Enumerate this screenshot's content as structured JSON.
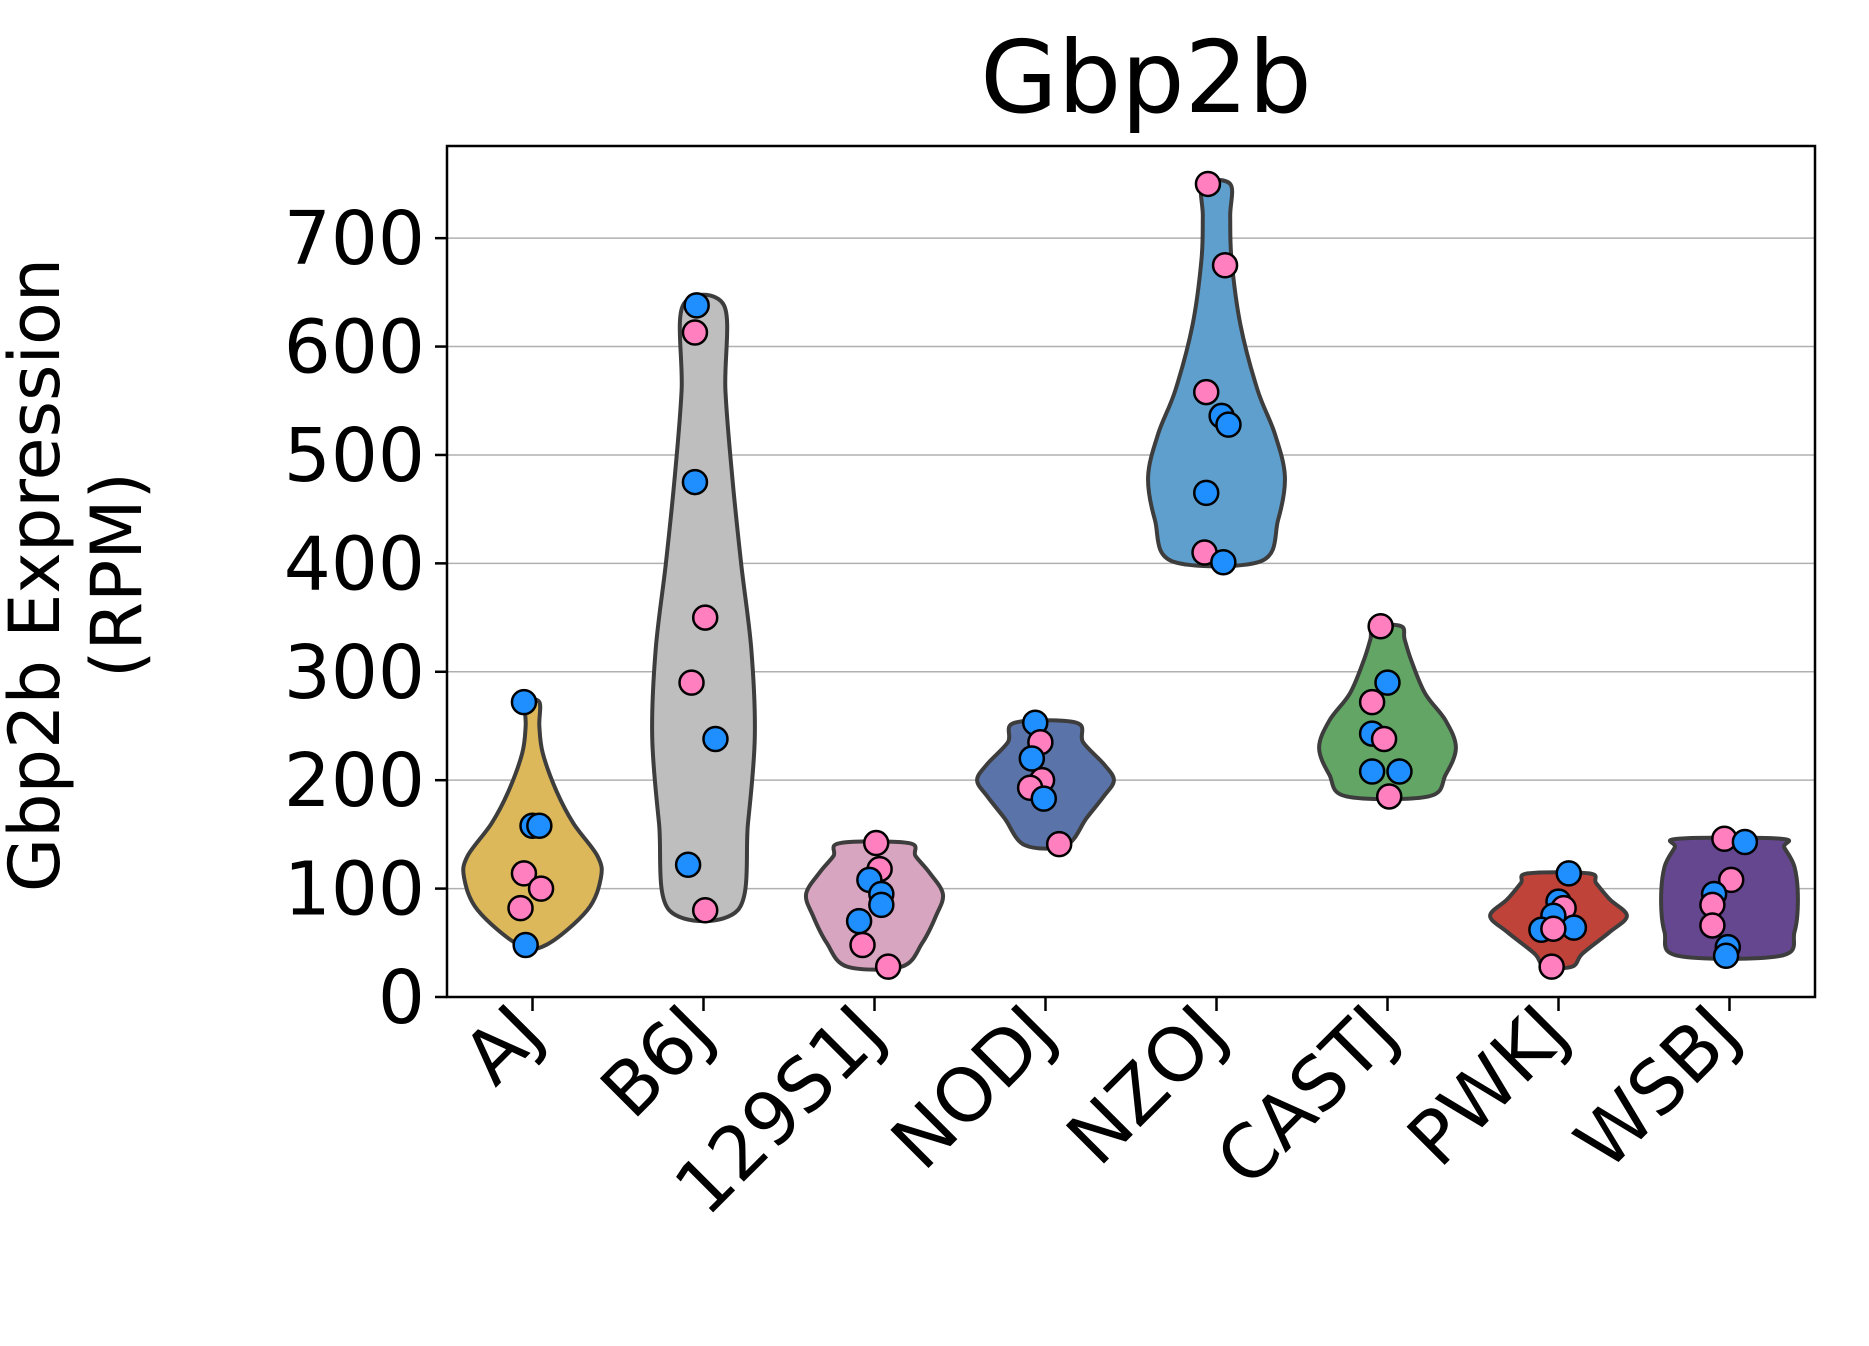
{
  "chart_data": {
    "type": "violin",
    "title": "Gbp2b",
    "xlabel": "",
    "ylabel": "Gbp2b Expression\n(RPM)",
    "ylim": [
      0,
      785
    ],
    "yticks": [
      0,
      100,
      200,
      300,
      400,
      500,
      600,
      700
    ],
    "grid": "horizontal",
    "categories": [
      "AJ",
      "B6J",
      "129S1J",
      "NODJ",
      "NZOJ",
      "CASTJ",
      "PWKJ",
      "WSBJ"
    ],
    "colors": {
      "AJ": "#ddb85a",
      "B6J": "#bebebe",
      "129S1J": "#d8a5c0",
      "NODJ": "#5a73a8",
      "NZOJ": "#5f9fcd",
      "CASTJ": "#62a565",
      "PWKJ": "#c0433a",
      "WSBJ": "#654790"
    },
    "point_colors": {
      "pink": "#ff7fbf",
      "blue": "#1f8fff"
    },
    "violins": [
      {
        "group": "AJ",
        "profile": [
          [
            48,
            0.2
          ],
          [
            80,
            0.8
          ],
          [
            110,
            1.0
          ],
          [
            130,
            0.95
          ],
          [
            160,
            0.6
          ],
          [
            190,
            0.35
          ],
          [
            225,
            0.15
          ],
          [
            250,
            0.1
          ],
          [
            272,
            0.1
          ]
        ]
      },
      {
        "group": "B6J",
        "profile": [
          [
            80,
            0.5
          ],
          [
            160,
            0.65
          ],
          [
            240,
            0.75
          ],
          [
            320,
            0.7
          ],
          [
            400,
            0.55
          ],
          [
            480,
            0.42
          ],
          [
            560,
            0.32
          ],
          [
            638,
            0.3
          ]
        ]
      },
      {
        "group": "129S1J",
        "profile": [
          [
            28,
            0.4
          ],
          [
            50,
            0.7
          ],
          [
            75,
            0.9
          ],
          [
            95,
            1.0
          ],
          [
            115,
            0.8
          ],
          [
            130,
            0.6
          ],
          [
            142,
            0.5
          ]
        ]
      },
      {
        "group": "NODJ",
        "profile": [
          [
            140,
            0.3
          ],
          [
            165,
            0.6
          ],
          [
            185,
            0.85
          ],
          [
            200,
            1.0
          ],
          [
            215,
            0.85
          ],
          [
            235,
            0.55
          ],
          [
            253,
            0.45
          ]
        ]
      },
      {
        "group": "NZOJ",
        "profile": [
          [
            402,
            0.65
          ],
          [
            440,
            0.9
          ],
          [
            480,
            1.0
          ],
          [
            520,
            0.85
          ],
          [
            560,
            0.6
          ],
          [
            620,
            0.35
          ],
          [
            680,
            0.22
          ],
          [
            720,
            0.2
          ],
          [
            750,
            0.2
          ]
        ]
      },
      {
        "group": "CASTJ",
        "profile": [
          [
            185,
            0.6
          ],
          [
            205,
            0.85
          ],
          [
            230,
            1.0
          ],
          [
            255,
            0.85
          ],
          [
            280,
            0.55
          ],
          [
            310,
            0.35
          ],
          [
            330,
            0.25
          ],
          [
            342,
            0.2
          ]
        ]
      },
      {
        "group": "PWKJ",
        "profile": [
          [
            28,
            0.2
          ],
          [
            40,
            0.35
          ],
          [
            60,
            0.75
          ],
          [
            75,
            1.0
          ],
          [
            90,
            0.75
          ],
          [
            105,
            0.55
          ],
          [
            114,
            0.45
          ]
        ]
      },
      {
        "group": "WSBJ",
        "profile": [
          [
            38,
            0.75
          ],
          [
            60,
            0.95
          ],
          [
            90,
            1.0
          ],
          [
            120,
            0.95
          ],
          [
            138,
            0.8
          ],
          [
            146,
            0.75
          ]
        ]
      }
    ],
    "points": [
      {
        "group": "AJ",
        "color": "blue",
        "x_offset": -0.05,
        "y": 272
      },
      {
        "group": "AJ",
        "color": "blue",
        "x_offset": 0.0,
        "y": 158
      },
      {
        "group": "AJ",
        "color": "blue",
        "x_offset": 0.04,
        "y": 158
      },
      {
        "group": "AJ",
        "color": "pink",
        "x_offset": -0.05,
        "y": 114
      },
      {
        "group": "AJ",
        "color": "pink",
        "x_offset": 0.05,
        "y": 100
      },
      {
        "group": "AJ",
        "color": "pink",
        "x_offset": -0.07,
        "y": 82
      },
      {
        "group": "AJ",
        "color": "blue",
        "x_offset": -0.04,
        "y": 48
      },
      {
        "group": "B6J",
        "color": "blue",
        "x_offset": -0.04,
        "y": 638
      },
      {
        "group": "B6J",
        "color": "pink",
        "x_offset": -0.05,
        "y": 613
      },
      {
        "group": "B6J",
        "color": "blue",
        "x_offset": -0.05,
        "y": 475
      },
      {
        "group": "B6J",
        "color": "pink",
        "x_offset": 0.01,
        "y": 350
      },
      {
        "group": "B6J",
        "color": "pink",
        "x_offset": -0.07,
        "y": 290
      },
      {
        "group": "B6J",
        "color": "blue",
        "x_offset": 0.07,
        "y": 238
      },
      {
        "group": "B6J",
        "color": "blue",
        "x_offset": -0.09,
        "y": 122
      },
      {
        "group": "B6J",
        "color": "pink",
        "x_offset": 0.01,
        "y": 80
      },
      {
        "group": "129S1J",
        "color": "pink",
        "x_offset": 0.01,
        "y": 142
      },
      {
        "group": "129S1J",
        "color": "pink",
        "x_offset": 0.03,
        "y": 118
      },
      {
        "group": "129S1J",
        "color": "blue",
        "x_offset": -0.03,
        "y": 108
      },
      {
        "group": "129S1J",
        "color": "blue",
        "x_offset": 0.04,
        "y": 95
      },
      {
        "group": "129S1J",
        "color": "blue",
        "x_offset": 0.04,
        "y": 85
      },
      {
        "group": "129S1J",
        "color": "blue",
        "x_offset": -0.09,
        "y": 70
      },
      {
        "group": "129S1J",
        "color": "pink",
        "x_offset": -0.07,
        "y": 48
      },
      {
        "group": "129S1J",
        "color": "pink",
        "x_offset": 0.08,
        "y": 28
      },
      {
        "group": "NODJ",
        "color": "blue",
        "x_offset": -0.06,
        "y": 253
      },
      {
        "group": "NODJ",
        "color": "pink",
        "x_offset": -0.03,
        "y": 235
      },
      {
        "group": "NODJ",
        "color": "blue",
        "x_offset": -0.08,
        "y": 220
      },
      {
        "group": "NODJ",
        "color": "pink",
        "x_offset": -0.02,
        "y": 200
      },
      {
        "group": "NODJ",
        "color": "pink",
        "x_offset": -0.09,
        "y": 193
      },
      {
        "group": "NODJ",
        "color": "blue",
        "x_offset": -0.01,
        "y": 183
      },
      {
        "group": "NODJ",
        "color": "pink",
        "x_offset": 0.08,
        "y": 141
      },
      {
        "group": "NZOJ",
        "color": "pink",
        "x_offset": -0.05,
        "y": 750
      },
      {
        "group": "NZOJ",
        "color": "pink",
        "x_offset": 0.05,
        "y": 675
      },
      {
        "group": "NZOJ",
        "color": "pink",
        "x_offset": -0.06,
        "y": 558
      },
      {
        "group": "NZOJ",
        "color": "blue",
        "x_offset": 0.03,
        "y": 536
      },
      {
        "group": "NZOJ",
        "color": "blue",
        "x_offset": 0.07,
        "y": 528
      },
      {
        "group": "NZOJ",
        "color": "blue",
        "x_offset": -0.06,
        "y": 465
      },
      {
        "group": "NZOJ",
        "color": "pink",
        "x_offset": -0.07,
        "y": 410
      },
      {
        "group": "NZOJ",
        "color": "blue",
        "x_offset": 0.04,
        "y": 401
      },
      {
        "group": "CASTJ",
        "color": "pink",
        "x_offset": -0.04,
        "y": 342
      },
      {
        "group": "CASTJ",
        "color": "blue",
        "x_offset": 0.0,
        "y": 290
      },
      {
        "group": "CASTJ",
        "color": "pink",
        "x_offset": -0.09,
        "y": 272
      },
      {
        "group": "CASTJ",
        "color": "blue",
        "x_offset": -0.09,
        "y": 243
      },
      {
        "group": "CASTJ",
        "color": "pink",
        "x_offset": -0.02,
        "y": 238
      },
      {
        "group": "CASTJ",
        "color": "blue",
        "x_offset": -0.09,
        "y": 208
      },
      {
        "group": "CASTJ",
        "color": "blue",
        "x_offset": 0.07,
        "y": 208
      },
      {
        "group": "CASTJ",
        "color": "pink",
        "x_offset": 0.01,
        "y": 185
      },
      {
        "group": "PWKJ",
        "color": "blue",
        "x_offset": 0.06,
        "y": 114
      },
      {
        "group": "PWKJ",
        "color": "blue",
        "x_offset": 0.0,
        "y": 88
      },
      {
        "group": "PWKJ",
        "color": "pink",
        "x_offset": 0.03,
        "y": 82
      },
      {
        "group": "PWKJ",
        "color": "blue",
        "x_offset": -0.03,
        "y": 75
      },
      {
        "group": "PWKJ",
        "color": "blue",
        "x_offset": 0.09,
        "y": 64
      },
      {
        "group": "PWKJ",
        "color": "blue",
        "x_offset": -0.1,
        "y": 62
      },
      {
        "group": "PWKJ",
        "color": "pink",
        "x_offset": -0.03,
        "y": 63
      },
      {
        "group": "PWKJ",
        "color": "pink",
        "x_offset": -0.04,
        "y": 28
      },
      {
        "group": "WSBJ",
        "color": "pink",
        "x_offset": -0.03,
        "y": 146
      },
      {
        "group": "WSBJ",
        "color": "blue",
        "x_offset": 0.09,
        "y": 143
      },
      {
        "group": "WSBJ",
        "color": "pink",
        "x_offset": 0.01,
        "y": 108
      },
      {
        "group": "WSBJ",
        "color": "blue",
        "x_offset": -0.09,
        "y": 95
      },
      {
        "group": "WSBJ",
        "color": "pink",
        "x_offset": -0.1,
        "y": 85
      },
      {
        "group": "WSBJ",
        "color": "pink",
        "x_offset": -0.1,
        "y": 66
      },
      {
        "group": "WSBJ",
        "color": "blue",
        "x_offset": -0.01,
        "y": 46
      },
      {
        "group": "WSBJ",
        "color": "blue",
        "x_offset": -0.02,
        "y": 38
      }
    ]
  }
}
